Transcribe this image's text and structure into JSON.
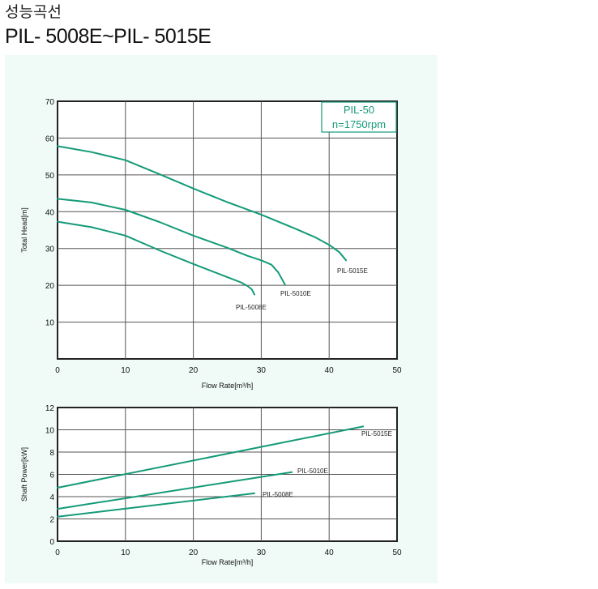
{
  "heading": {
    "korean": "성능곡선",
    "models": "PIL- 5008E~PIL- 5015E"
  },
  "colors": {
    "curve": "#149a78",
    "label_box": "#149a78",
    "grid": "#555555",
    "panel_bg": "#f0fbf7"
  },
  "chart_data": [
    {
      "type": "line",
      "xlabel": "Flow Rate[m³/h]",
      "ylabel": "Total Head[m]",
      "xlim": [
        0,
        50
      ],
      "ylim": [
        0,
        70
      ],
      "x_ticks": [
        "0",
        "10",
        "20",
        "30",
        "40",
        "50"
      ],
      "y_ticks": [
        "10",
        "20",
        "30",
        "40",
        "50",
        "60",
        "70"
      ],
      "grid": true,
      "box_label": [
        "PIL-50",
        "n=1750rpm"
      ],
      "series": [
        {
          "name": "PIL-5015E",
          "x": [
            0,
            5,
            10,
            15,
            20,
            25,
            30,
            35,
            38,
            40,
            41.5,
            42.5
          ],
          "y": [
            57.8,
            56.2,
            54,
            50.2,
            46.3,
            42.6,
            39.2,
            35.4,
            33,
            31,
            29,
            26.8
          ]
        },
        {
          "name": "PIL-5010E",
          "x": [
            0,
            5,
            10,
            15,
            20,
            25,
            28,
            30,
            31.5,
            32.5,
            33.5
          ],
          "y": [
            43.5,
            42.5,
            40.5,
            37.2,
            33.5,
            30.2,
            28,
            26.8,
            25.6,
            23.5,
            20.2
          ]
        },
        {
          "name": "PIL-5008E",
          "x": [
            0,
            5,
            10,
            15,
            20,
            25,
            27,
            28,
            28.6,
            29
          ],
          "y": [
            37.3,
            35.8,
            33.5,
            29.5,
            25.8,
            22.2,
            20.8,
            19.8,
            18.9,
            17.5
          ]
        }
      ]
    },
    {
      "type": "line",
      "xlabel": "Flow Rate[m³/h]",
      "ylabel": "Shaft Power[kW]",
      "xlim": [
        0,
        50
      ],
      "ylim": [
        0,
        12
      ],
      "x_ticks": [
        "0",
        "10",
        "20",
        "30",
        "40",
        "50"
      ],
      "y_ticks": [
        "0",
        "2",
        "4",
        "6",
        "8",
        "10",
        "12"
      ],
      "grid": true,
      "series": [
        {
          "name": "PIL-5015E",
          "x": [
            0,
            45
          ],
          "y": [
            4.8,
            10.3
          ]
        },
        {
          "name": "PIL-5010E",
          "x": [
            0,
            34.5
          ],
          "y": [
            2.9,
            6.2
          ]
        },
        {
          "name": "PIL-5008E",
          "x": [
            0,
            29
          ],
          "y": [
            2.2,
            4.3
          ]
        }
      ]
    }
  ]
}
